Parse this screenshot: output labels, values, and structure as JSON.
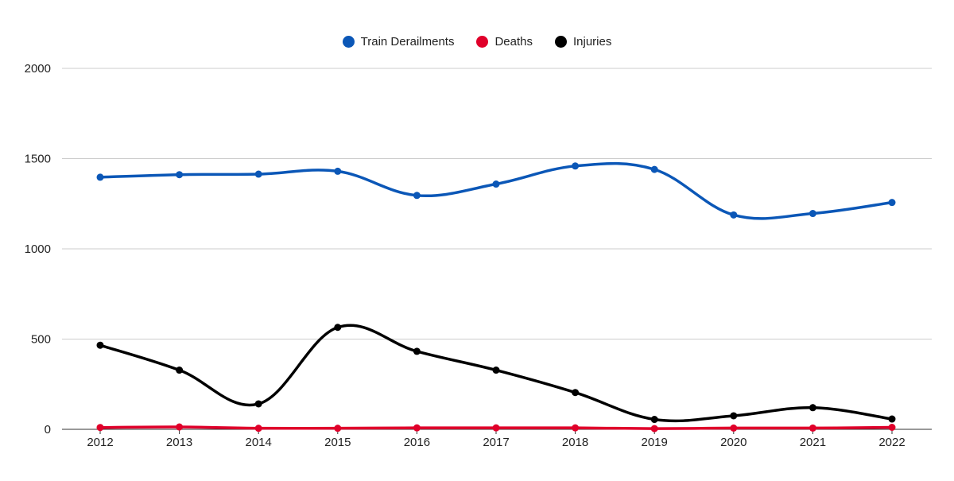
{
  "chart_data": {
    "type": "line",
    "categories": [
      "2012",
      "2013",
      "2014",
      "2015",
      "2016",
      "2017",
      "2018",
      "2019",
      "2020",
      "2021",
      "2022"
    ],
    "series": [
      {
        "name": "Train Derailments",
        "color": "#0b57b7",
        "values": [
          1397,
          1411,
          1414,
          1430,
          1296,
          1359,
          1459,
          1440,
          1188,
          1196,
          1257
        ]
      },
      {
        "name": "Deaths",
        "color": "#e0002a",
        "values": [
          10,
          13,
          6,
          6,
          8,
          8,
          8,
          4,
          7,
          7,
          11
        ]
      },
      {
        "name": "Injuries",
        "color": "#000000",
        "values": [
          466,
          328,
          141,
          565,
          432,
          328,
          204,
          55,
          75,
          120,
          57
        ]
      }
    ],
    "ylim": [
      0,
      2000
    ],
    "yticks": [
      0,
      500,
      1000,
      1500,
      2000
    ],
    "grid": true,
    "legend_position": "top-center",
    "smooth": true
  }
}
